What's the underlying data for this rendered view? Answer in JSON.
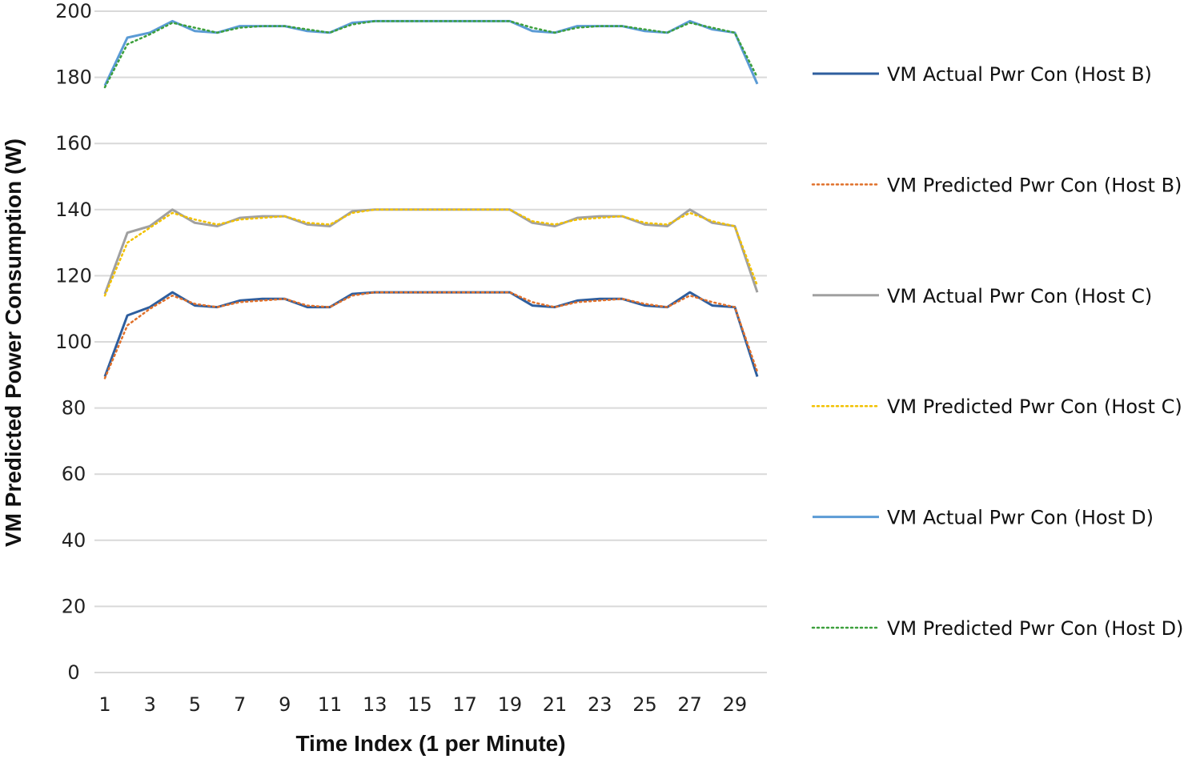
{
  "chart_data": {
    "type": "line",
    "xlabel": "Time Index (1 per Minute)",
    "ylabel": "VM Predicted Power Consumption (W)",
    "ylim": [
      0,
      200
    ],
    "yticks": [
      0,
      20,
      40,
      60,
      80,
      100,
      120,
      140,
      160,
      180,
      200
    ],
    "xlim": [
      1,
      30
    ],
    "xticks": [
      1,
      3,
      5,
      7,
      9,
      11,
      13,
      15,
      17,
      19,
      21,
      23,
      25,
      27,
      29
    ],
    "grid": true,
    "legend_position": "right",
    "x": [
      1,
      2,
      3,
      4,
      5,
      6,
      7,
      8,
      9,
      10,
      11,
      12,
      13,
      14,
      15,
      16,
      17,
      18,
      19,
      20,
      21,
      22,
      23,
      24,
      25,
      26,
      27,
      28,
      29,
      30
    ],
    "series": [
      {
        "name": "VM Actual Pwr Con (Host B)",
        "color": "#2E5E9E",
        "style": "solid",
        "values": [
          89.5,
          108,
          110.5,
          115,
          111,
          110.5,
          112.5,
          113,
          113,
          110.5,
          110.5,
          114.5,
          115,
          115,
          115,
          115,
          115,
          115,
          115,
          111,
          110.5,
          112.5,
          113,
          113,
          111,
          110.5,
          115,
          111,
          110.5,
          89.5
        ]
      },
      {
        "name": "VM Predicted Pwr Con (Host B)",
        "color": "#E0702A",
        "style": "dotted",
        "values": [
          89,
          105,
          110,
          114,
          111.5,
          110.5,
          112,
          112.5,
          113,
          111,
          110.5,
          114,
          115,
          115,
          115,
          115,
          115,
          115,
          115,
          112,
          110.5,
          112,
          112.5,
          113,
          111.5,
          110.5,
          114,
          112,
          110.5,
          91
        ]
      },
      {
        "name": "VM Actual Pwr Con (Host C)",
        "color": "#A0A0A0",
        "style": "solid",
        "values": [
          114.5,
          133,
          135,
          140,
          136,
          135,
          137.5,
          138,
          138,
          135.5,
          135,
          139.5,
          140,
          140,
          140,
          140,
          140,
          140,
          140,
          136,
          135,
          137.5,
          138,
          138,
          135.5,
          135,
          140,
          136,
          135,
          115
        ]
      },
      {
        "name": "VM Predicted Pwr Con (Host C)",
        "color": "#F2C100",
        "style": "dotted",
        "values": [
          114,
          130,
          134.5,
          139,
          137,
          135.5,
          137,
          137.5,
          138,
          136,
          135.5,
          139,
          140,
          140,
          140,
          140,
          140,
          140,
          140,
          136.5,
          135.5,
          137,
          137.5,
          138,
          136,
          135.5,
          139,
          136.5,
          135,
          117
        ]
      },
      {
        "name": "VM Actual Pwr Con (Host D)",
        "color": "#5B9BD5",
        "style": "solid",
        "values": [
          177.5,
          192,
          193.5,
          197,
          194,
          193.5,
          195.5,
          195.5,
          195.5,
          194,
          193.5,
          196.5,
          197,
          197,
          197,
          197,
          197,
          197,
          197,
          194,
          193.5,
          195.5,
          195.5,
          195.5,
          194,
          193.5,
          197,
          194.5,
          193.5,
          178
        ]
      },
      {
        "name": "VM Predicted Pwr Con (Host D)",
        "color": "#3DA03D",
        "style": "dotted",
        "values": [
          177,
          190,
          193,
          196.5,
          195,
          193.5,
          195,
          195.5,
          195.5,
          194.5,
          193.5,
          196,
          197,
          197,
          197,
          197,
          197,
          197,
          197,
          195,
          193.5,
          195,
          195.5,
          195.5,
          194.5,
          193.5,
          196.5,
          195,
          193.5,
          180
        ]
      }
    ]
  }
}
